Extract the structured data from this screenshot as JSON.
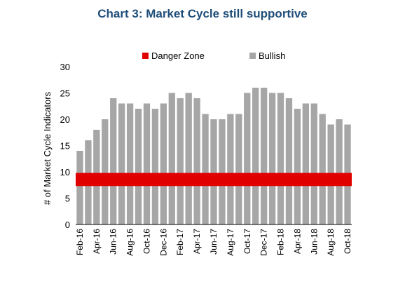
{
  "chart_data": {
    "type": "bar",
    "title": "Chart 3: Market Cycle still supportive",
    "ylabel": "# of Market Cycle Indicators",
    "xlabel": "",
    "ylim": [
      0,
      30
    ],
    "yticks": [
      0,
      5,
      10,
      15,
      20,
      25,
      30
    ],
    "grid": false,
    "legend_position": "top",
    "categories": [
      "Feb-16",
      "Mar-16",
      "Apr-16",
      "May-16",
      "Jun-16",
      "Jul-16",
      "Aug-16",
      "Sep-16",
      "Oct-16",
      "Nov-16",
      "Dec-16",
      "Jan-17",
      "Feb-17",
      "Mar-17",
      "Apr-17",
      "May-17",
      "Jun-17",
      "Jul-17",
      "Aug-17",
      "Sep-17",
      "Oct-17",
      "Nov-17",
      "Dec-17",
      "Jan-18",
      "Feb-18",
      "Mar-18",
      "Apr-18",
      "May-18",
      "Jun-18",
      "Jul-18",
      "Aug-18",
      "Sep-18",
      "Oct-18"
    ],
    "shown_tick_labels": [
      "Feb-16",
      "Apr-16",
      "Jun-16",
      "Aug-16",
      "Oct-16",
      "Dec-16",
      "Feb-17",
      "Apr-17",
      "Jun-17",
      "Aug-17",
      "Oct-17",
      "Dec-17",
      "Feb-18",
      "Apr-18",
      "Jun-18",
      "Aug-18",
      "Oct-18"
    ],
    "series": [
      {
        "name": "Bullish",
        "color": "#a6a6a6",
        "values": [
          14,
          16,
          18,
          20,
          24,
          23,
          23,
          22,
          23,
          22,
          23,
          25,
          24,
          25,
          24,
          21,
          20,
          20,
          21,
          21,
          25,
          26,
          26,
          25,
          25,
          24,
          22,
          23,
          23,
          21,
          19,
          20,
          19
        ]
      },
      {
        "name": "Danger Zone",
        "color": "#e00000",
        "band": [
          7.3,
          9.8
        ]
      }
    ]
  }
}
